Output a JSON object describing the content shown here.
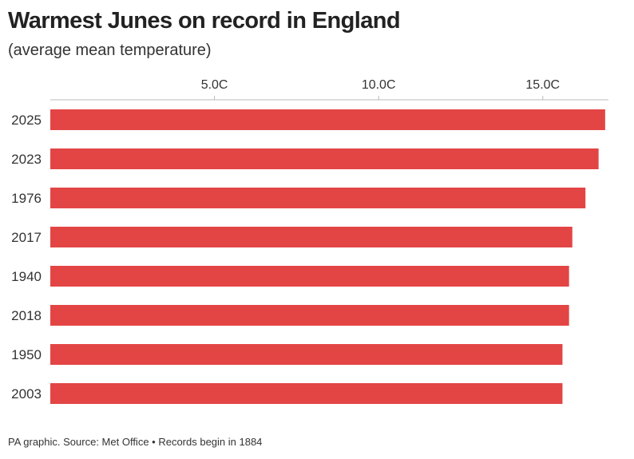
{
  "chart_data": {
    "type": "bar",
    "orientation": "horizontal",
    "title": "Warmest Junes on record in England",
    "subtitle": "(average mean temperature)",
    "categories": [
      "2025",
      "2023",
      "1976",
      "2017",
      "1940",
      "2018",
      "1950",
      "2003"
    ],
    "values": [
      16.9,
      16.7,
      16.3,
      15.9,
      15.8,
      15.8,
      15.6,
      15.6
    ],
    "xlim": [
      0,
      17
    ],
    "ticks": [
      5,
      10,
      15
    ],
    "tick_labels": [
      "5.0C",
      "10.0C",
      "15.0C"
    ],
    "xlabel": "",
    "ylabel": "",
    "grid": false,
    "bar_color": "#e34545"
  },
  "footer": {
    "source": "PA graphic. Source: Met Office • Records begin in 1884"
  }
}
